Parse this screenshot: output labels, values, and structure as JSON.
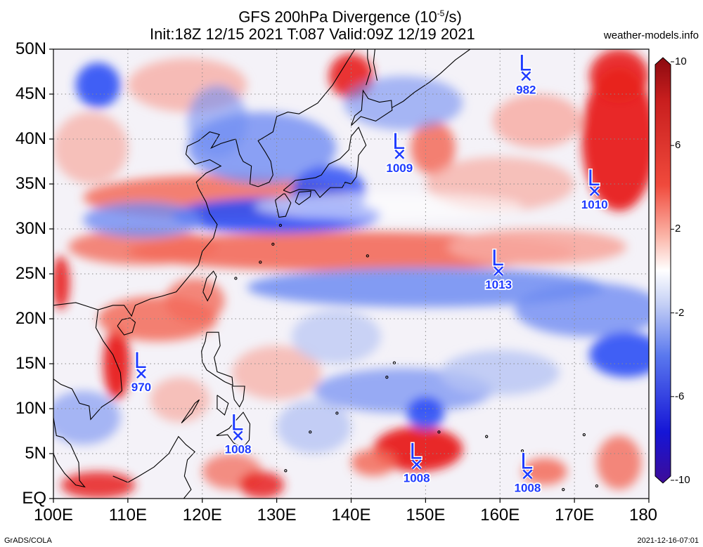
{
  "header": {
    "title_prefix": "GFS 200hPa Divergence (10",
    "title_exp": "-5",
    "title_suffix": "/s)",
    "subtitle": "Init:18Z 12/15 2021 T:087 Valid:09Z 12/19 2021",
    "site": "weather-models.info"
  },
  "footer": {
    "credit": "GrADS/COLA",
    "timestamp": "2021-12-16-07:01"
  },
  "axes": {
    "lat_labels": [
      "50N",
      "45N",
      "40N",
      "35N",
      "30N",
      "25N",
      "20N",
      "15N",
      "10N",
      "5N",
      "EQ"
    ],
    "lon_labels": [
      "100E",
      "110E",
      "120E",
      "130E",
      "140E",
      "150E",
      "160E",
      "170E",
      "180"
    ]
  },
  "colorbar": {
    "ticks": [
      "10",
      "6",
      "2",
      "-2",
      "-6",
      "-10"
    ],
    "min": -10,
    "max": 10,
    "colors_top_to_bottom": [
      "#a50f15",
      "#d7191c",
      "#f03b20",
      "#fb6a4a",
      "#fcbba1",
      "#ffffff",
      "#c6dbef",
      "#6b8ff0",
      "#2c5bff",
      "#1a1ae6",
      "#3d0fa0"
    ]
  },
  "lows": [
    {
      "label": "L",
      "pressure": "982",
      "lon": 163.5,
      "lat": 47
    },
    {
      "label": "L",
      "pressure": "1009",
      "lon": 146.5,
      "lat": 38.3
    },
    {
      "label": "L",
      "pressure": "1010",
      "lon": 172.7,
      "lat": 34.2
    },
    {
      "label": "L",
      "pressure": "1013",
      "lon": 159.8,
      "lat": 25.3
    },
    {
      "label": "L",
      "pressure": "970",
      "lon": 111.8,
      "lat": 13.9
    },
    {
      "label": "L",
      "pressure": "1008",
      "lon": 124.8,
      "lat": 7.0
    },
    {
      "label": "L",
      "pressure": "1008",
      "lon": 148.8,
      "lat": 3.8
    },
    {
      "label": "L",
      "pressure": "1008",
      "lon": 163.7,
      "lat": 2.7
    }
  ],
  "colors": {
    "low_marker": "#1f3bff",
    "grid": "#7f7f7f",
    "coast": "#000000"
  }
}
